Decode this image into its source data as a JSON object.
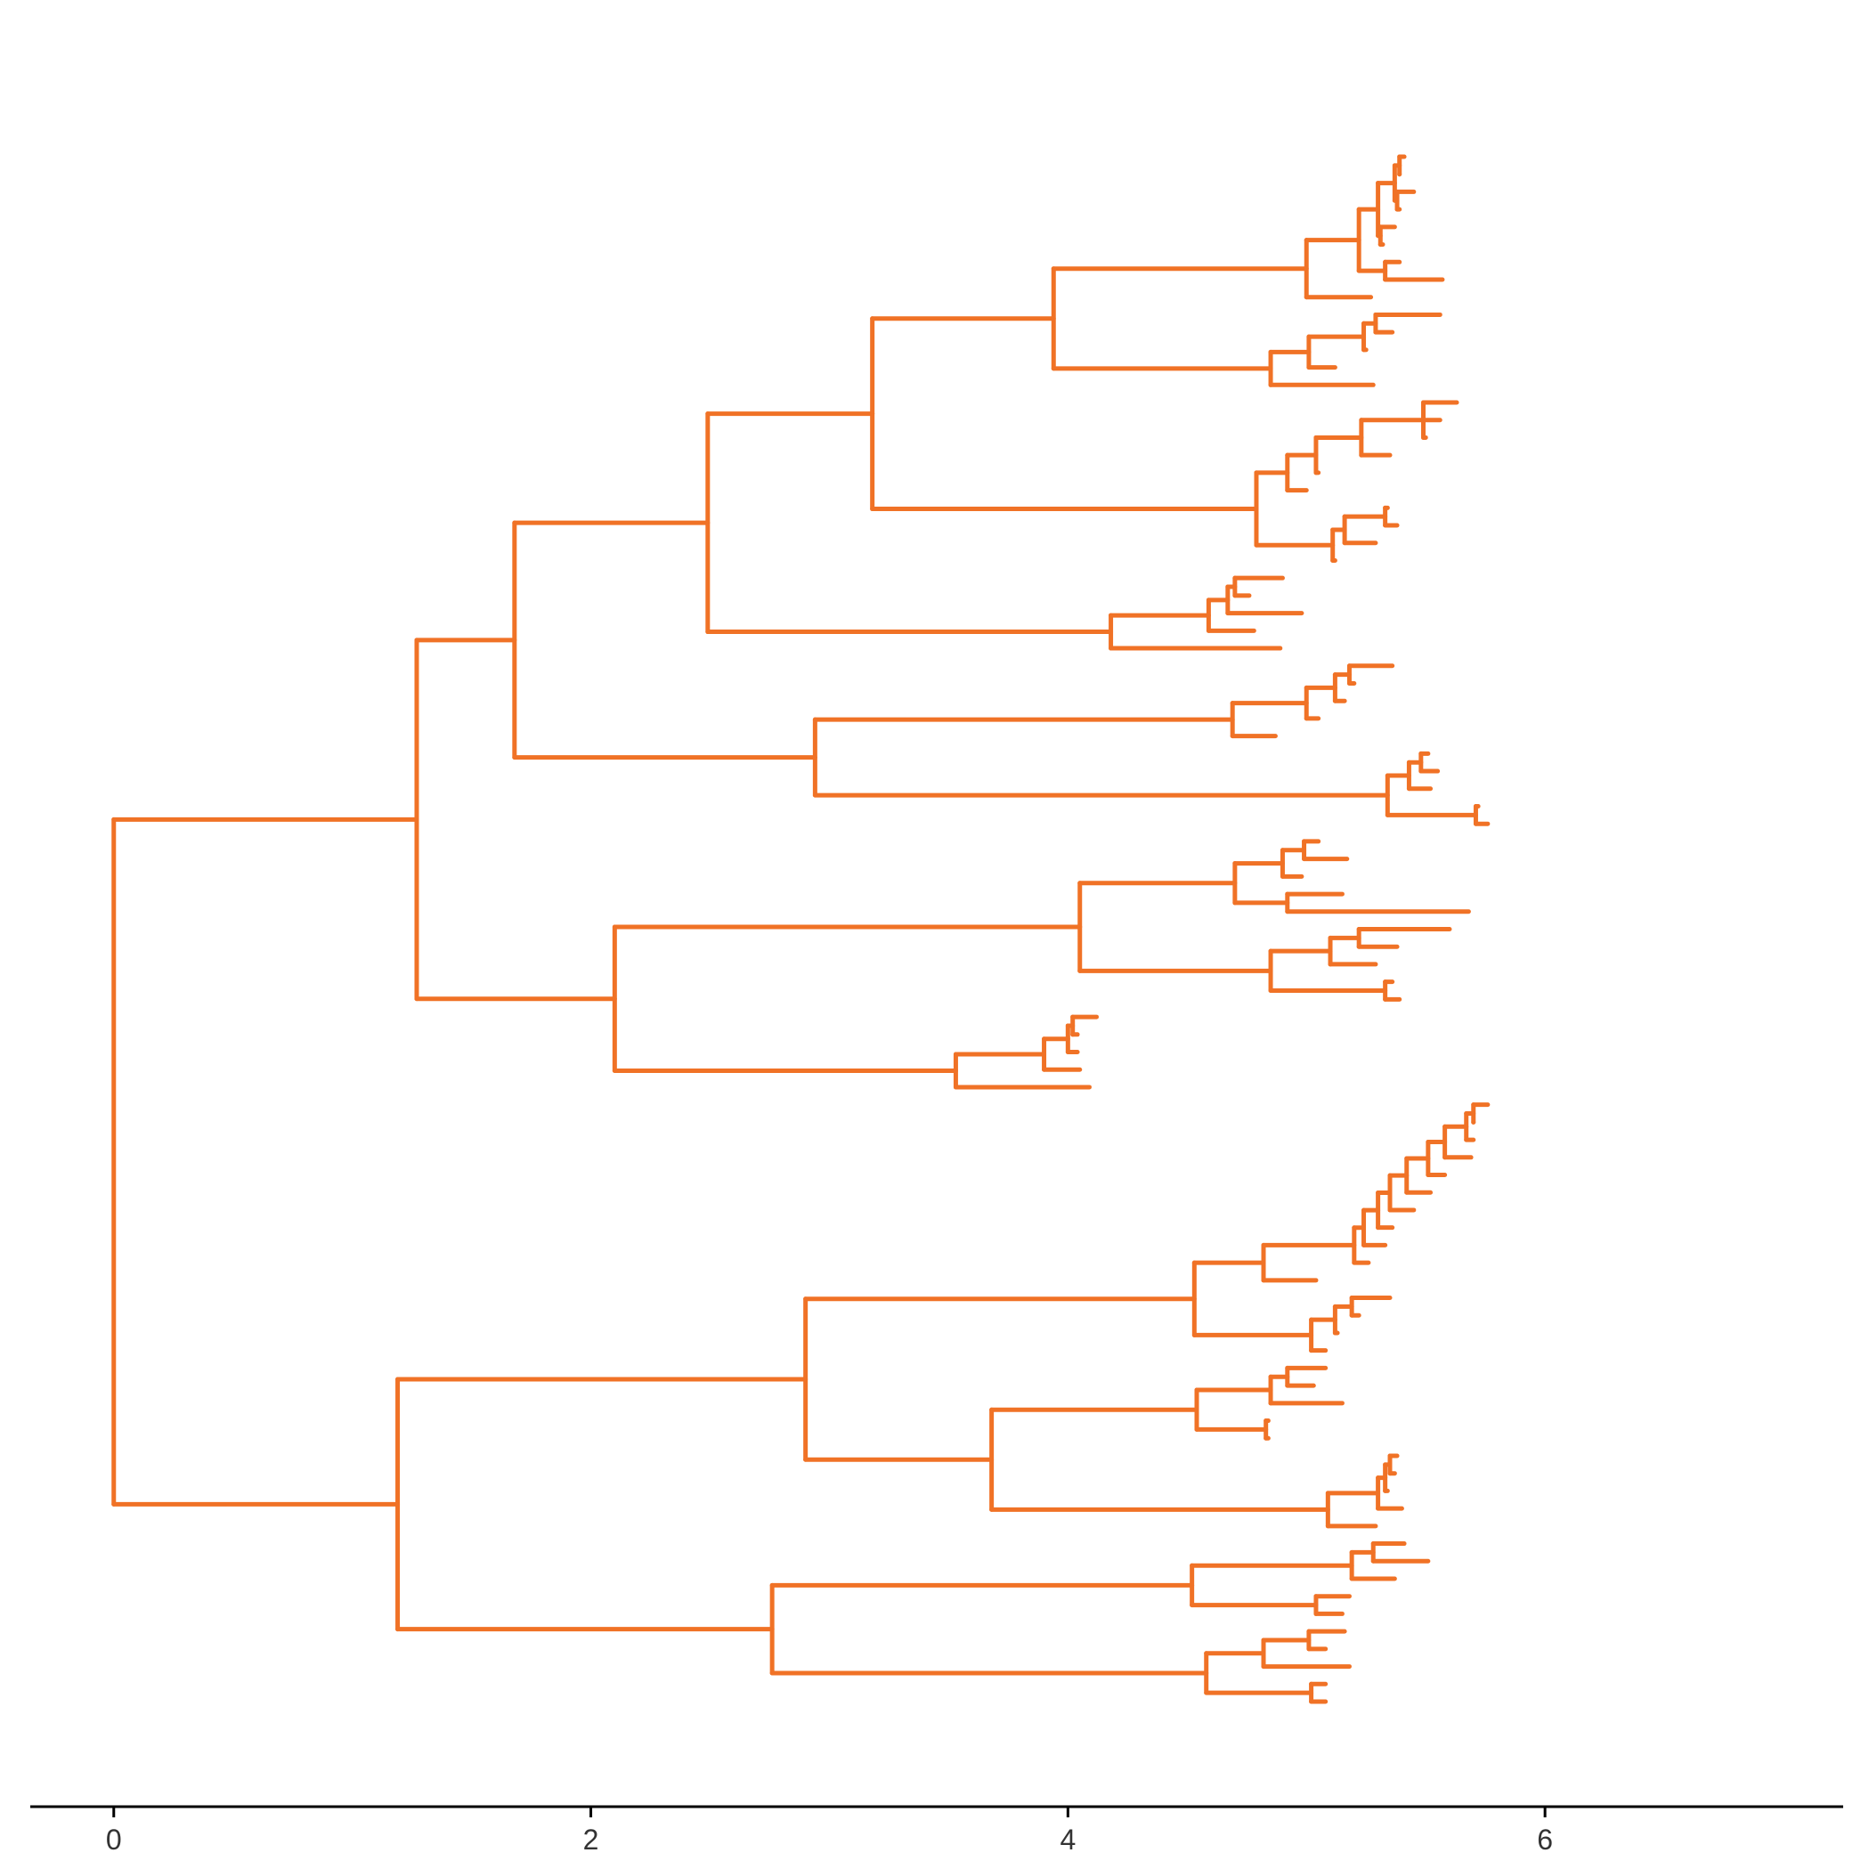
{
  "figure": {
    "type": "phylogenetic-tree",
    "line_color": "#F07226",
    "axis_color": "#000000"
  },
  "axis": {
    "min": -0.35,
    "max": 7.25,
    "ticks": [
      {
        "value": 0,
        "label": "0"
      },
      {
        "value": 2,
        "label": "2"
      },
      {
        "value": 4,
        "label": "4"
      },
      {
        "value": 6,
        "label": "6"
      }
    ]
  },
  "tree": {
    "x": 0,
    "c": [
      {
        "x": 1.27,
        "c": [
          {
            "x": 1.68,
            "c": [
              {
                "x": 2.49,
                "c": [
                  {
                    "x": 3.18,
                    "c": [
                      {
                        "x": 3.94,
                        "c": [
                          {
                            "x": 5.0,
                            "c": [
                              {
                                "x": 5.22,
                                "c": [
                                  {
                                    "x": 5.3,
                                    "c": [
                                      {
                                        "x": 5.37,
                                        "c": [
                                          {
                                            "x": 5.39,
                                            "c": [
                                              5.41,
                                              5.39
                                            ]
                                          },
                                          {
                                            "x": 5.38,
                                            "c": [
                                              5.45,
                                              5.39
                                            ]
                                          }
                                        ]
                                      },
                                      {
                                        "x": 5.31,
                                        "c": [
                                          5.37,
                                          5.32
                                        ]
                                      }
                                    ]
                                  },
                                  {
                                    "x": 5.33,
                                    "c": [
                                      5.39,
                                      5.57
                                    ]
                                  }
                                ]
                              },
                              5.27
                            ]
                          },
                          {
                            "x": 4.85,
                            "c": [
                              {
                                "x": 5.01,
                                "c": [
                                  {
                                    "x": 5.24,
                                    "c": [
                                      {
                                        "x": 5.29,
                                        "c": [
                                          5.56,
                                          5.36
                                        ]
                                      },
                                      5.25
                                    ]
                                  },
                                  5.12
                                ]
                              },
                              5.28
                            ]
                          }
                        ]
                      },
                      {
                        "x": 4.79,
                        "c": [
                          {
                            "x": 4.92,
                            "c": [
                              {
                                "x": 5.04,
                                "c": [
                                  {
                                    "x": 5.23,
                                    "c": [
                                      {
                                        "x": 5.49,
                                        "c": [
                                          5.63,
                                          5.56,
                                          5.5
                                        ]
                                      },
                                      5.35
                                    ]
                                  },
                                  5.05
                                ]
                              },
                              5.0
                            ]
                          },
                          {
                            "x": 5.11,
                            "c": [
                              {
                                "x": 5.16,
                                "c": [
                                  {
                                    "x": 5.33,
                                    "c": [
                                      5.34,
                                      5.38
                                    ]
                                  },
                                  5.29
                                ]
                              },
                              5.12
                            ]
                          }
                        ]
                      }
                    ]
                  },
                  {
                    "x": 4.18,
                    "c": [
                      {
                        "x": 4.59,
                        "c": [
                          {
                            "x": 4.67,
                            "c": [
                              {
                                "x": 4.7,
                                "c": [
                                  4.9,
                                  4.76
                                ]
                              },
                              4.98
                            ]
                          },
                          4.78
                        ]
                      },
                      4.89
                    ]
                  }
                ]
              },
              {
                "x": 2.94,
                "c": [
                  {
                    "x": 4.69,
                    "c": [
                      {
                        "x": 5.0,
                        "c": [
                          {
                            "x": 5.12,
                            "c": [
                              {
                                "x": 5.18,
                                "c": [
                                  5.36,
                                  5.2
                                ]
                              },
                              5.16
                            ]
                          },
                          5.05
                        ]
                      },
                      4.87
                    ]
                  },
                  {
                    "x": 5.34,
                    "c": [
                      {
                        "x": 5.43,
                        "c": [
                          {
                            "x": 5.48,
                            "c": [
                              5.51,
                              5.55
                            ]
                          },
                          5.52
                        ]
                      },
                      {
                        "x": 5.71,
                        "c": [
                          5.72,
                          5.76
                        ]
                      }
                    ]
                  }
                ]
              }
            ]
          },
          {
            "x": 2.1,
            "c": [
              {
                "x": 4.05,
                "c": [
                  {
                    "x": 4.7,
                    "c": [
                      {
                        "x": 4.9,
                        "c": [
                          {
                            "x": 4.99,
                            "c": [
                              5.05,
                              5.17
                            ]
                          },
                          4.98
                        ]
                      },
                      {
                        "x": 4.92,
                        "c": [
                          5.15,
                          5.68
                        ]
                      }
                    ]
                  },
                  {
                    "x": 4.85,
                    "c": [
                      {
                        "x": 5.1,
                        "c": [
                          {
                            "x": 5.22,
                            "c": [
                              5.6,
                              5.38
                            ]
                          },
                          5.29
                        ]
                      },
                      {
                        "x": 5.33,
                        "c": [
                          5.36,
                          5.39
                        ]
                      }
                    ]
                  }
                ]
              },
              {
                "x": 3.53,
                "c": [
                  {
                    "x": 3.9,
                    "c": [
                      {
                        "x": 4.0,
                        "c": [
                          {
                            "x": 4.02,
                            "c": [
                              4.12,
                              4.04
                            ]
                          },
                          4.04
                        ]
                      },
                      4.05
                    ]
                  },
                  4.09
                ]
              }
            ]
          }
        ]
      },
      {
        "x": 1.19,
        "c": [
          {
            "x": 2.9,
            "c": [
              {
                "x": 4.53,
                "c": [
                  {
                    "x": 4.82,
                    "c": [
                      {
                        "x": 5.2,
                        "c": [
                          {
                            "x": 5.24,
                            "c": [
                              {
                                "x": 5.3,
                                "c": [
                                  {
                                    "x": 5.35,
                                    "c": [
                                      {
                                        "x": 5.42,
                                        "c": [
                                          {
                                            "x": 5.51,
                                            "c": [
                                              {
                                                "x": 5.58,
                                                "c": [
                                                  {
                                                    "x": 5.67,
                                                    "c": [
                                                      {
                                                        "x": 5.7,
                                                        "c": [
                                                          5.76,
                                                          5.7
                                                        ]
                                                      },
                                                      5.7
                                                    ]
                                                  },
                                                  5.69
                                                ]
                                              },
                                              5.58
                                            ]
                                          },
                                          5.52
                                        ]
                                      },
                                      5.45
                                    ]
                                  },
                                  5.36
                                ]
                              },
                              5.33
                            ]
                          },
                          5.26
                        ]
                      },
                      5.04
                    ]
                  },
                  {
                    "x": 5.02,
                    "c": [
                      {
                        "x": 5.12,
                        "c": [
                          {
                            "x": 5.19,
                            "c": [
                              5.35,
                              5.22
                            ]
                          },
                          5.13
                        ]
                      },
                      5.08
                    ]
                  }
                ]
              },
              {
                "x": 3.68,
                "c": [
                  {
                    "x": 4.54,
                    "c": [
                      {
                        "x": 4.85,
                        "c": [
                          {
                            "x": 4.92,
                            "c": [
                              5.08,
                              5.03
                            ]
                          },
                          5.15
                        ]
                      },
                      {
                        "x": 4.83,
                        "c": [
                          4.84,
                          4.84
                        ]
                      }
                    ]
                  },
                  {
                    "x": 5.09,
                    "c": [
                      {
                        "x": 5.3,
                        "c": [
                          {
                            "x": 5.33,
                            "c": [
                              {
                                "x": 5.35,
                                "c": [
                                  5.38,
                                  5.37
                                ]
                              },
                              5.34
                            ]
                          },
                          5.4
                        ]
                      },
                      5.29
                    ]
                  }
                ]
              }
            ]
          },
          {
            "x": 2.76,
            "c": [
              {
                "x": 4.52,
                "c": [
                  {
                    "x": 5.19,
                    "c": [
                      {
                        "x": 5.28,
                        "c": [
                          5.41,
                          5.51
                        ]
                      },
                      5.37
                    ]
                  },
                  {
                    "x": 5.04,
                    "c": [
                      5.18,
                      5.15
                    ]
                  }
                ]
              },
              {
                "x": 4.58,
                "c": [
                  {
                    "x": 4.82,
                    "c": [
                      {
                        "x": 5.01,
                        "c": [
                          5.16,
                          5.08
                        ]
                      },
                      5.18
                    ]
                  },
                  {
                    "x": 5.02,
                    "c": [
                      5.08,
                      5.08
                    ]
                  }
                ]
              }
            ]
          }
        ]
      }
    ]
  }
}
